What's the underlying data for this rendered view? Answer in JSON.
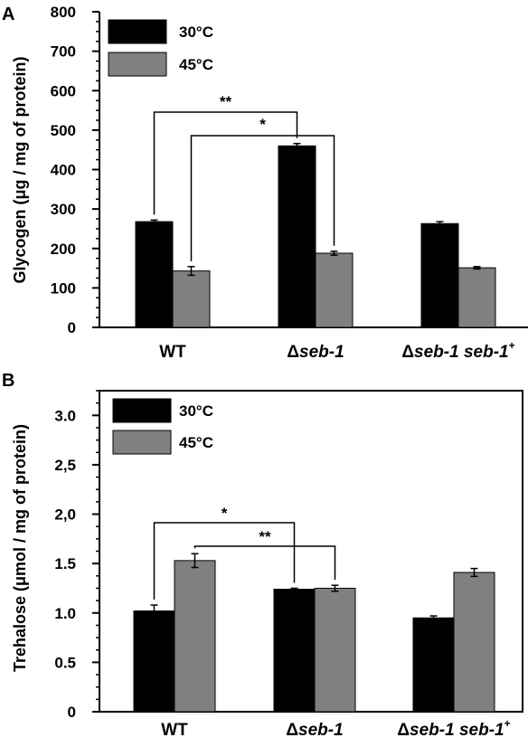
{
  "chart_data": [
    {
      "panel": "A",
      "type": "bar",
      "ylabel": "Glycogen (μg / mg of protein)",
      "ylim": [
        0,
        800
      ],
      "yticks": [
        "0",
        "100",
        "200",
        "300",
        "400",
        "500",
        "600",
        "700",
        "800"
      ],
      "categories": [
        {
          "prefix": "",
          "name": "WT",
          "suffix": ""
        },
        {
          "prefix": "Δ",
          "name": "seb-1",
          "suffix": ""
        },
        {
          "prefix": "Δ",
          "name": "seb-1 seb-1",
          "suffix": "+"
        }
      ],
      "series": [
        {
          "name": "30°C",
          "color": "#000000",
          "values": [
            268,
            460,
            263
          ],
          "errors": [
            4,
            6,
            5
          ]
        },
        {
          "name": "45°C",
          "color": "#808080",
          "values": [
            143,
            188,
            151
          ],
          "errors": [
            11,
            5,
            3
          ]
        }
      ],
      "significance": [
        {
          "label": "**",
          "from": [
            0,
            0
          ],
          "to": [
            1,
            0
          ]
        },
        {
          "label": "*",
          "from": [
            0,
            1
          ],
          "to": [
            1,
            1
          ]
        }
      ],
      "legend": "top-left",
      "grid": false
    },
    {
      "panel": "B",
      "type": "bar",
      "ylabel": "Trehalose (μmol / mg of protein)",
      "ylim": [
        0,
        3.25
      ],
      "yticks": [
        "0",
        "0.5",
        "1.0",
        "1.5",
        "2,0",
        "2,5",
        "3.0"
      ],
      "categories": [
        {
          "prefix": "",
          "name": "WT",
          "suffix": ""
        },
        {
          "prefix": "Δ",
          "name": "seb-1",
          "suffix": ""
        },
        {
          "prefix": "Δ",
          "name": "seb-1 seb-1",
          "suffix": "+"
        }
      ],
      "series": [
        {
          "name": "30°C",
          "color": "#000000",
          "values": [
            1.02,
            1.24,
            0.95
          ],
          "errors": [
            0.06,
            0.01,
            0.02
          ]
        },
        {
          "name": "45°C",
          "color": "#808080",
          "values": [
            1.53,
            1.25,
            1.41
          ],
          "errors": [
            0.07,
            0.03,
            0.04
          ]
        }
      ],
      "significance": [
        {
          "label": "*",
          "from": [
            0,
            0
          ],
          "to": [
            1,
            0
          ]
        },
        {
          "label": "**",
          "from": [
            0,
            1
          ],
          "to": [
            1,
            1
          ]
        }
      ],
      "legend": "top-left",
      "grid": false
    }
  ]
}
